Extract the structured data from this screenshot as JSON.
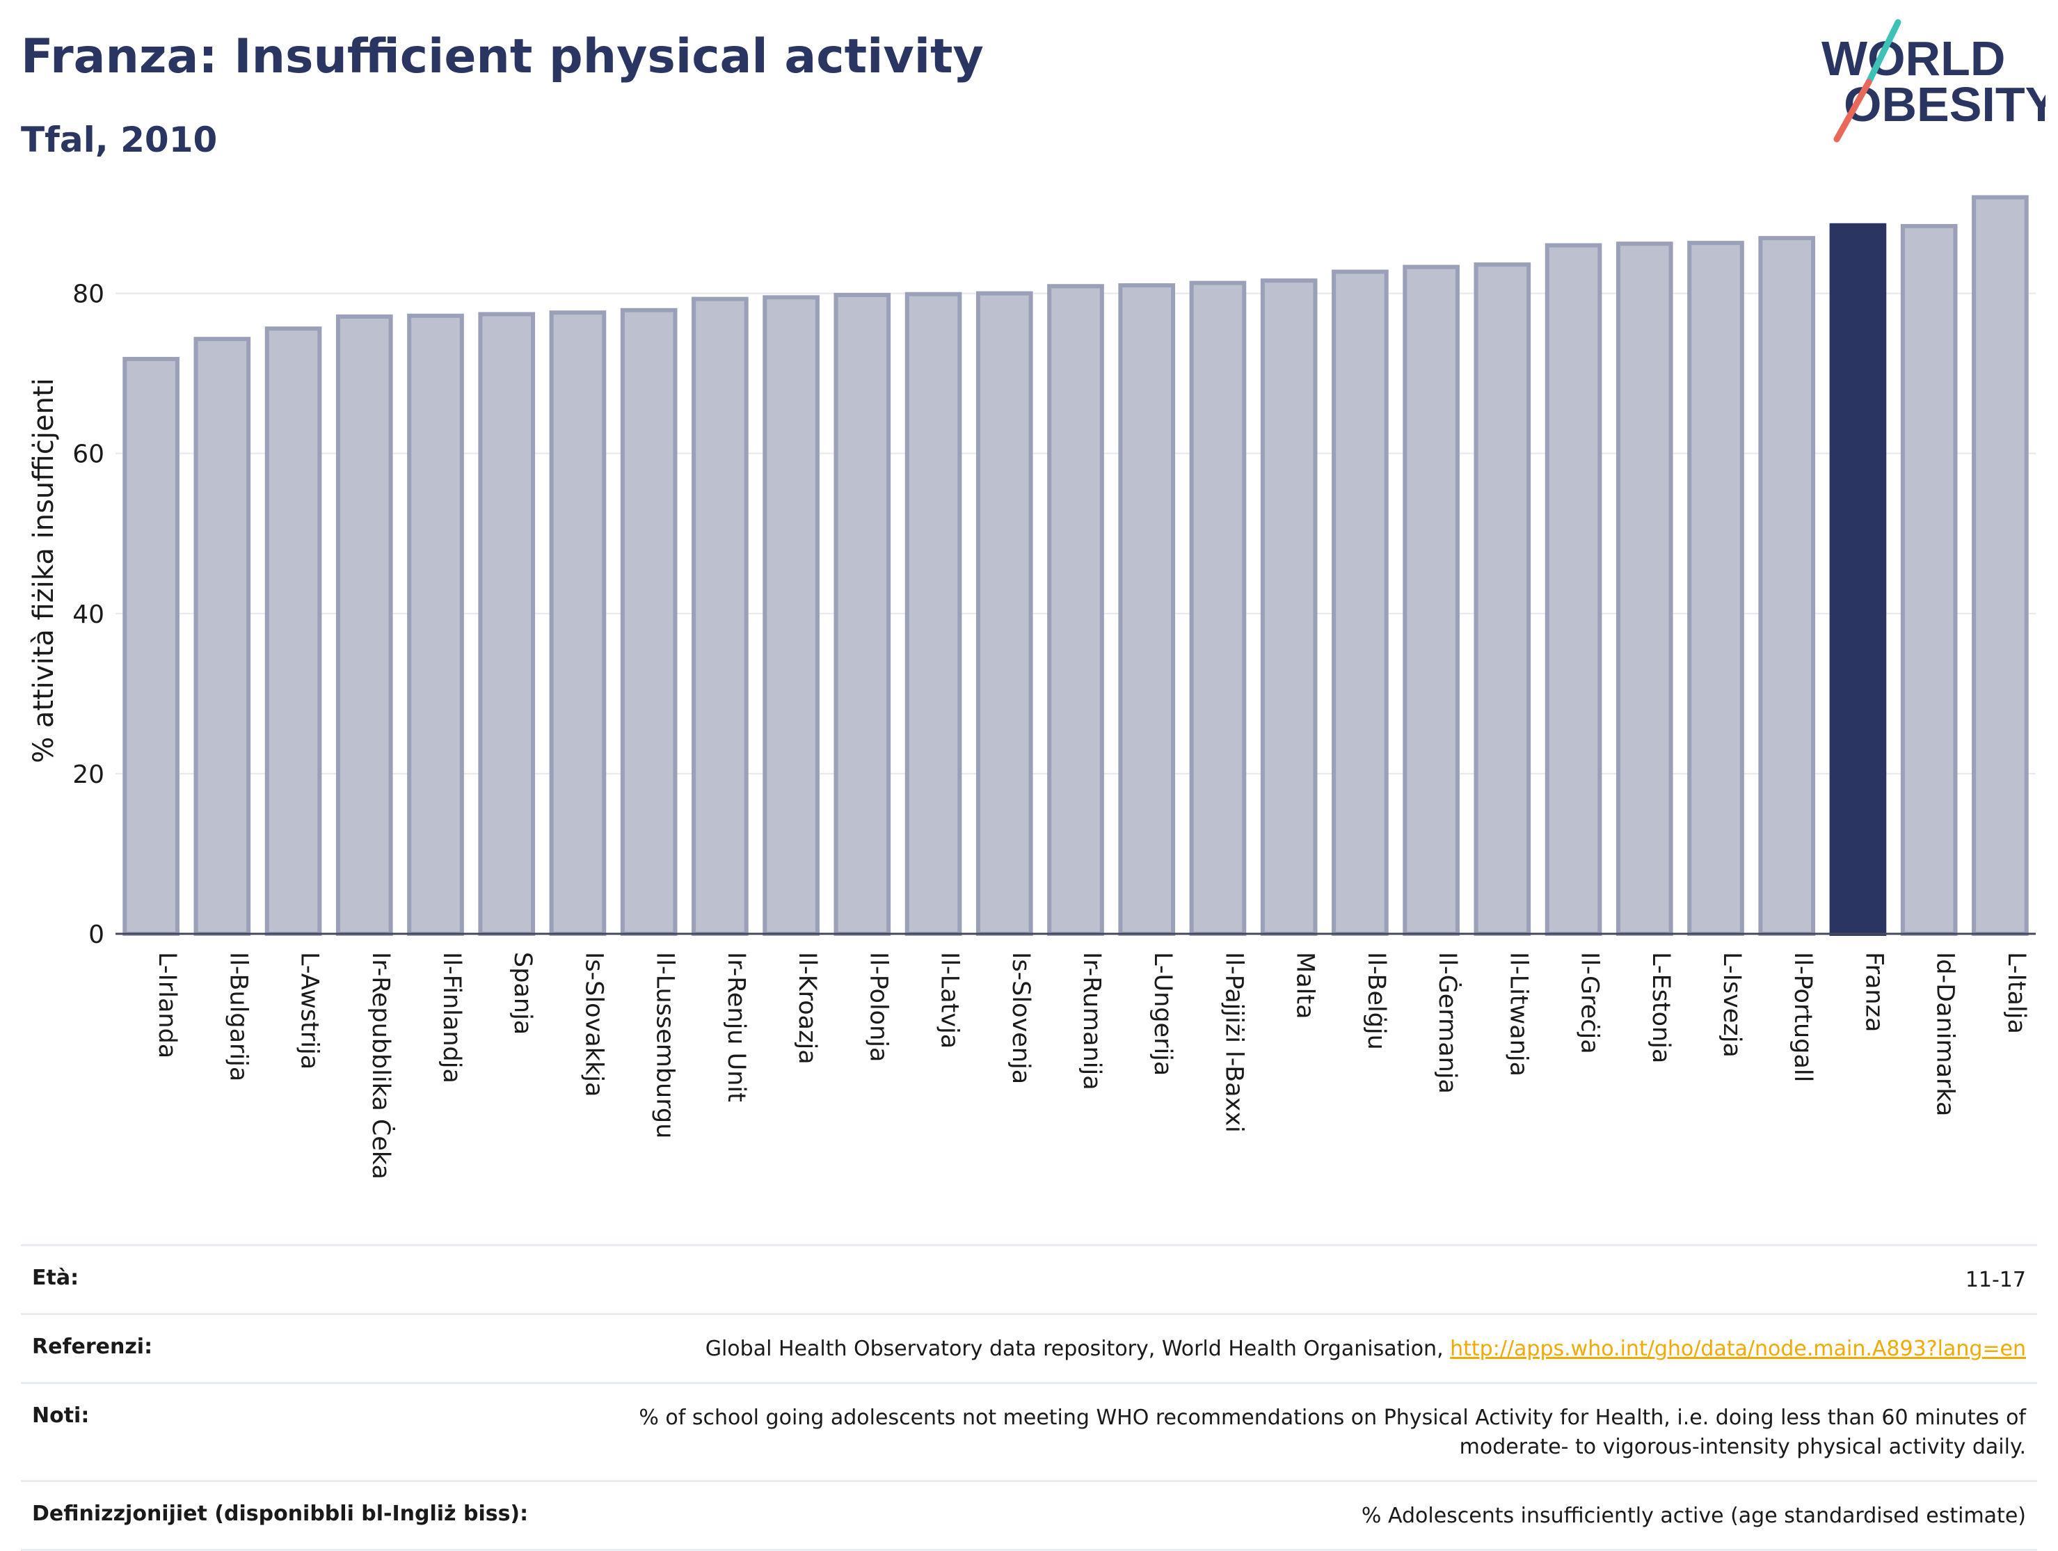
{
  "header": {
    "title": "Franza: Insufficient physical activity",
    "subtitle": "Tfal, 2010"
  },
  "logo": {
    "line1": "WORLD",
    "line2": "OBESITY"
  },
  "colors": {
    "bar": "#bcc0cf",
    "bar_stroke": "#9aa0b8",
    "highlight": "#2b3561",
    "slash_teal": "#3ec1b7",
    "slash_coral": "#e8685a"
  },
  "chart_data": {
    "type": "bar",
    "title": "Franza: Insufficient physical activity",
    "subtitle": "Tfal, 2010",
    "xlabel": "",
    "ylabel": "% attività fiżika insuffiċjenti",
    "ylim": [
      0,
      93
    ],
    "yticks": [
      0,
      20,
      40,
      60,
      80
    ],
    "grid": true,
    "highlight": "Franza",
    "categories": [
      "L-Irlanda",
      "Il-Bulgarija",
      "L-Awstrija",
      "Ir-Repubblika Ċeka",
      "Il-Finlandja",
      "Spanja",
      "Is-Slovakkja",
      "Il-Lussemburgu",
      "Ir-Renju Unit",
      "Il-Kroazja",
      "Il-Polonja",
      "Il-Latvja",
      "Is-Slovenja",
      "Ir-Rumanija",
      "L-Ungerija",
      "Il-Pajjiżi l-Baxxi",
      "Malta",
      "Il-Belġju",
      "Il-Ġermanja",
      "Il-Litwanja",
      "Il-Greċja",
      "L-Estonja",
      "L-Isvezja",
      "Il-Portugall",
      "Franza",
      "Id-Danimarka",
      "L-Italja"
    ],
    "values": [
      71.8,
      74.3,
      75.6,
      77.1,
      77.2,
      77.4,
      77.6,
      77.9,
      79.3,
      79.5,
      79.8,
      79.9,
      80.0,
      80.9,
      81.0,
      81.3,
      81.6,
      82.7,
      83.3,
      83.6,
      86.0,
      86.2,
      86.3,
      86.9,
      88.5,
      88.4,
      92.0
    ]
  },
  "footer": {
    "age_label": "Età:",
    "age_value": "11-17",
    "ref_label": "Referenzi:",
    "ref_text": "Global Health Observatory data repository, World Health Organisation, ",
    "ref_link": "http://apps.who.int/gho/data/node.main.A893?lang=en",
    "notes_label": "Noti:",
    "notes_line1": "% of school going adolescents not meeting WHO recommendations on Physical Activity for Health, i.e. doing less than 60 minutes of",
    "notes_line2": "moderate- to vigorous-intensity physical activity daily.",
    "def_label": "Definizzjonijiet (disponibbli bl-Ingliż biss):",
    "def_value": "% Adolescents insufficiently active (age standardised estimate)"
  }
}
